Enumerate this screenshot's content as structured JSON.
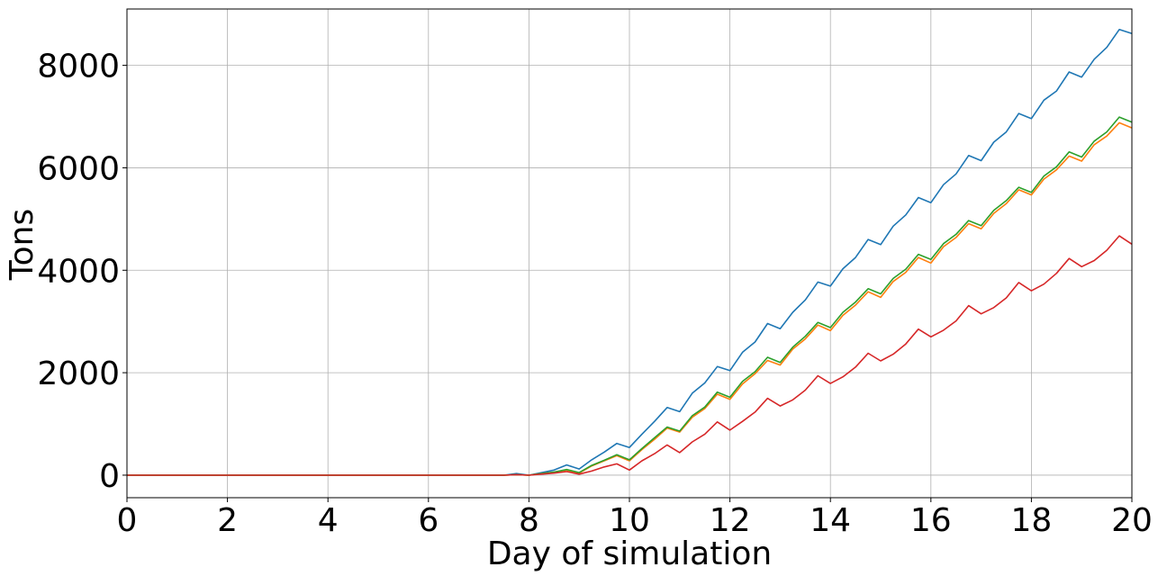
{
  "chart_data": {
    "type": "line",
    "title": "",
    "xlabel": "Day of simulation",
    "ylabel": "Tons",
    "xlim": [
      0,
      20
    ],
    "ylim": [
      -440,
      9100
    ],
    "xticks": [
      0,
      2,
      4,
      6,
      8,
      10,
      12,
      14,
      16,
      18,
      20
    ],
    "yticks": [
      0,
      2000,
      4000,
      6000,
      8000
    ],
    "grid": true,
    "legend": "none",
    "series": [
      {
        "color": "#1f77b4",
        "x": [
          0,
          7.5,
          7.75,
          8,
          8.25,
          8.5,
          8.75,
          9,
          9.25,
          9.5,
          9.75,
          10,
          10.25,
          10.5,
          10.75,
          11,
          11.25,
          11.5,
          11.75,
          12,
          12.25,
          12.5,
          12.75,
          13,
          13.25,
          13.5,
          13.75,
          14,
          14.25,
          14.5,
          14.75,
          15,
          15.25,
          15.5,
          15.75,
          16,
          16.25,
          16.5,
          16.75,
          17,
          17.25,
          17.5,
          17.75,
          18,
          18.25,
          18.5,
          18.75,
          19,
          19.25,
          19.5,
          19.75,
          20
        ],
        "y": [
          0,
          0,
          30,
          0,
          50,
          100,
          200,
          120,
          300,
          450,
          620,
          540,
          800,
          1050,
          1320,
          1240,
          1600,
          1800,
          2120,
          2040,
          2400,
          2600,
          2960,
          2860,
          3180,
          3420,
          3770,
          3690,
          4030,
          4250,
          4600,
          4500,
          4860,
          5080,
          5420,
          5320,
          5670,
          5880,
          6240,
          6140,
          6500,
          6700,
          7060,
          6960,
          7320,
          7500,
          7870,
          7770,
          8120,
          8350,
          8700,
          8620
        ]
      },
      {
        "color": "#ff7f0e",
        "x": [
          0,
          7.5,
          7.75,
          8,
          8.25,
          8.5,
          8.75,
          9,
          9.25,
          9.5,
          9.75,
          10,
          10.25,
          10.5,
          10.75,
          11,
          11.25,
          11.5,
          11.75,
          12,
          12.25,
          12.5,
          12.75,
          13,
          13.25,
          13.5,
          13.75,
          14,
          14.25,
          14.5,
          14.75,
          15,
          15.25,
          15.5,
          15.75,
          16,
          16.25,
          16.5,
          16.75,
          17,
          17.25,
          17.5,
          17.75,
          18,
          18.25,
          18.5,
          18.75,
          19,
          19.25,
          19.5,
          19.75,
          20
        ],
        "y": [
          0,
          0,
          10,
          0,
          30,
          60,
          100,
          40,
          180,
          280,
          380,
          280,
          500,
          700,
          920,
          840,
          1130,
          1300,
          1580,
          1480,
          1780,
          1980,
          2240,
          2150,
          2460,
          2660,
          2930,
          2820,
          3120,
          3320,
          3580,
          3470,
          3780,
          3960,
          4250,
          4140,
          4460,
          4640,
          4910,
          4810,
          5110,
          5300,
          5570,
          5470,
          5780,
          5960,
          6230,
          6130,
          6450,
          6620,
          6880,
          6780
        ]
      },
      {
        "color": "#2ca02c",
        "x": [
          0,
          7.5,
          7.75,
          8,
          8.25,
          8.5,
          8.75,
          9,
          9.25,
          9.5,
          9.75,
          10,
          10.25,
          10.5,
          10.75,
          11,
          11.25,
          11.5,
          11.75,
          12,
          12.25,
          12.5,
          12.75,
          13,
          13.25,
          13.5,
          13.75,
          14,
          14.25,
          14.5,
          14.75,
          15,
          15.25,
          15.5,
          15.75,
          16,
          16.25,
          16.5,
          16.75,
          17,
          17.25,
          17.5,
          17.75,
          18,
          18.25,
          18.5,
          18.75,
          19,
          19.25,
          19.5,
          19.75,
          20
        ],
        "y": [
          0,
          0,
          10,
          0,
          30,
          60,
          110,
          50,
          190,
          290,
          400,
          300,
          520,
          730,
          940,
          860,
          1160,
          1330,
          1620,
          1520,
          1830,
          2020,
          2300,
          2200,
          2500,
          2710,
          2980,
          2880,
          3180,
          3380,
          3640,
          3540,
          3840,
          4020,
          4310,
          4210,
          4520,
          4700,
          4970,
          4870,
          5170,
          5360,
          5620,
          5520,
          5840,
          6020,
          6310,
          6210,
          6520,
          6700,
          6990,
          6890
        ]
      },
      {
        "color": "#d62728",
        "x": [
          0,
          7.5,
          7.75,
          8,
          8.25,
          8.5,
          8.75,
          9,
          9.25,
          9.5,
          9.75,
          10,
          10.25,
          10.5,
          10.75,
          11,
          11.25,
          11.5,
          11.75,
          12,
          12.25,
          12.5,
          12.75,
          13,
          13.25,
          13.5,
          13.75,
          14,
          14.25,
          14.5,
          14.75,
          15,
          15.25,
          15.5,
          15.75,
          16,
          16.25,
          16.5,
          16.75,
          17,
          17.25,
          17.5,
          17.75,
          18,
          18.25,
          18.5,
          18.75,
          19,
          19.25,
          19.5,
          19.75,
          20
        ],
        "y": [
          0,
          0,
          10,
          0,
          20,
          40,
          70,
          20,
          80,
          160,
          220,
          100,
          280,
          420,
          590,
          440,
          650,
          800,
          1040,
          880,
          1050,
          1230,
          1500,
          1350,
          1470,
          1660,
          1940,
          1790,
          1920,
          2110,
          2380,
          2230,
          2360,
          2560,
          2850,
          2700,
          2830,
          3010,
          3310,
          3150,
          3270,
          3460,
          3760,
          3600,
          3730,
          3940,
          4230,
          4070,
          4190,
          4390,
          4670,
          4510
        ]
      }
    ]
  }
}
